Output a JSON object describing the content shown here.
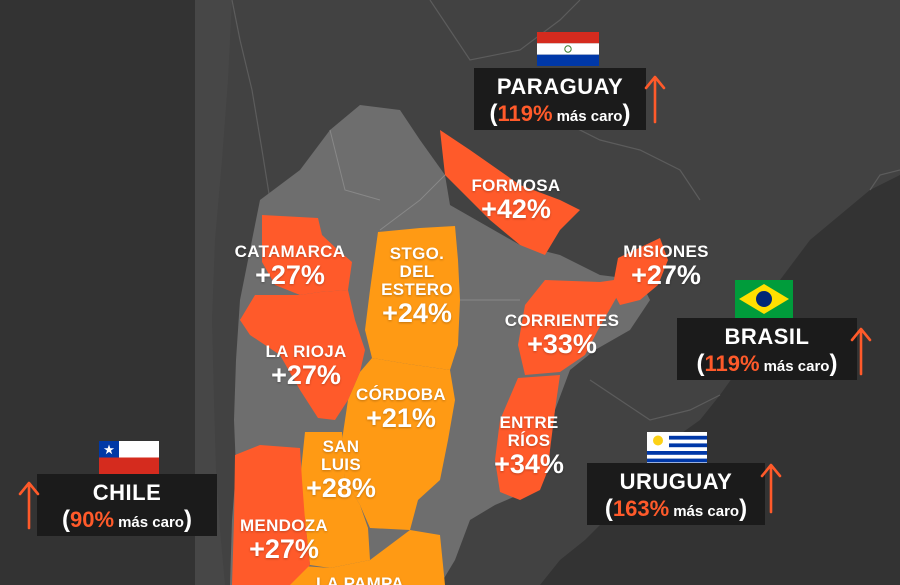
{
  "colors": {
    "increase_high": "#ff5a2a",
    "increase_low": "#ff9a14",
    "argentina_neutral": "#6e6e6e",
    "neighbor_land": "#424242",
    "ocean": "#333333",
    "box_bg": "#1b1b1b",
    "arrow": "#ff5a2a"
  },
  "provinces": [
    {
      "id": "formosa",
      "name": "FORMOSA",
      "change": "+42%",
      "level": "high"
    },
    {
      "id": "catamarca",
      "name": "CATAMARCA",
      "change": "+27%",
      "level": "high"
    },
    {
      "id": "santiago",
      "name_lines": [
        "STGO.",
        "DEL",
        "ESTERO"
      ],
      "change": "+24%",
      "level": "low"
    },
    {
      "id": "misiones",
      "name": "MISIONES",
      "change": "+27%",
      "level": "high"
    },
    {
      "id": "corrientes",
      "name": "CORRIENTES",
      "change": "+33%",
      "level": "high"
    },
    {
      "id": "larioja",
      "name": "LA RIOJA",
      "change": "+27%",
      "level": "high"
    },
    {
      "id": "cordoba",
      "name": "CÓRDOBA",
      "change": "+21%",
      "level": "low"
    },
    {
      "id": "entrerios",
      "name_lines": [
        "ENTRE",
        "RÍOS"
      ],
      "change": "+34%",
      "level": "high"
    },
    {
      "id": "sanluis",
      "name_lines": [
        "SAN",
        "LUIS"
      ],
      "change": "+28%",
      "level": "low"
    },
    {
      "id": "mendoza",
      "name": "MENDOZA",
      "change": "+27%",
      "level": "high"
    },
    {
      "id": "lapampa",
      "name": "LA PAMPA",
      "level": "low"
    }
  ],
  "countries": [
    {
      "id": "paraguay",
      "name": "PARAGUAY",
      "pct": "119%",
      "text": "más caro",
      "flag": "paraguay-flag",
      "arrow": "up-arrow-icon"
    },
    {
      "id": "brasil",
      "name": "BRASIL",
      "pct": "119%",
      "text": "más caro",
      "flag": "brazil-flag",
      "arrow": "up-arrow-icon"
    },
    {
      "id": "uruguay",
      "name": "URUGUAY",
      "pct": "163%",
      "text": "más caro",
      "flag": "uruguay-flag",
      "arrow": "up-arrow-icon"
    },
    {
      "id": "chile",
      "name": "CHILE",
      "pct": "90%",
      "text": "más caro",
      "flag": "chile-flag",
      "arrow": "up-arrow-icon"
    }
  ]
}
